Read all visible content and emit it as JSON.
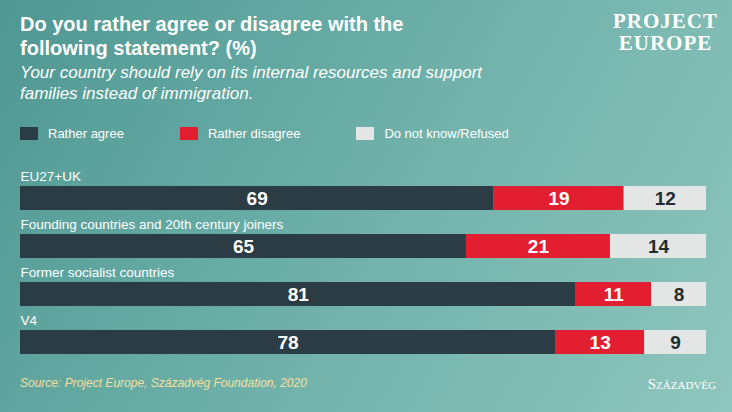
{
  "chart_data": {
    "type": "bar",
    "orientation": "horizontal",
    "stacked": true,
    "data_labels": true,
    "tick_labels": false,
    "legend": "top",
    "title": "Do you rather agree or disagree with the following statement? (%)",
    "subtitle": "Your country should rely on its internal resources and support families instead of immigration.",
    "source": "Source: Project Europe, Századvég Foundation, 2020",
    "logo": [
      "PROJECT",
      "EUROPE"
    ],
    "logo2": "Századvég",
    "categories": [
      "EU27+UK",
      "Founding countries and 20th century joiners",
      "Former socialist countries",
      "V4"
    ],
    "series": [
      {
        "name": "Rather agree",
        "color": "#2b3c45",
        "values": [
          69,
          65,
          81,
          78
        ]
      },
      {
        "name": "Rather disagree",
        "color": "#e31e30",
        "values": [
          19,
          21,
          11,
          13
        ]
      },
      {
        "name": "Do not know/Refused",
        "color": "#e4e6e6",
        "values": [
          12,
          14,
          8,
          9
        ]
      }
    ],
    "xlim": [
      0,
      100
    ],
    "xticks": []
  }
}
